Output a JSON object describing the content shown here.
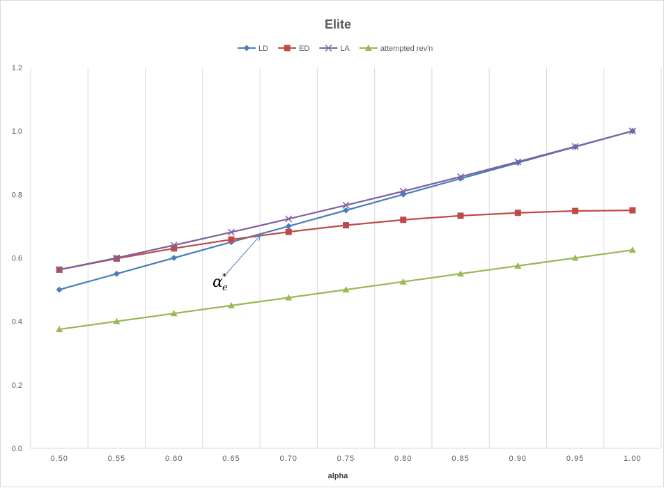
{
  "chart_data": {
    "type": "line",
    "title": "Elite",
    "xlabel": "alpha",
    "ylabel": "",
    "x": [
      0.5,
      0.55,
      0.6,
      0.65,
      0.7,
      0.75,
      0.8,
      0.85,
      0.9,
      0.95,
      1.0
    ],
    "x_tick_labels": [
      "0.50",
      "0.55",
      "0.60",
      "0.65",
      "0.70",
      "0.75",
      "0.80",
      "0.85",
      "0.90",
      "0.95",
      "1.00"
    ],
    "y_tick_labels": [
      "0.0",
      "0.2",
      "0.4",
      "0.6",
      "0.8",
      "1.0",
      "1.2"
    ],
    "ylim": [
      0,
      1.2
    ],
    "grid": "vertical",
    "legend_position": "top",
    "series": [
      {
        "name": "LD",
        "color": "#4a7ebb",
        "marker": "diamond",
        "values": [
          0.5,
          0.55,
          0.6,
          0.65,
          0.7,
          0.75,
          0.8,
          0.85,
          0.9,
          0.95,
          1.0
        ]
      },
      {
        "name": "ED",
        "color": "#be4b48",
        "marker": "square",
        "values": [
          0.563,
          0.598,
          0.63,
          0.658,
          0.682,
          0.703,
          0.72,
          0.733,
          0.742,
          0.748,
          0.75
        ]
      },
      {
        "name": "LA",
        "color": "#7e62a1",
        "marker": "x",
        "values": [
          0.563,
          0.6,
          0.64,
          0.681,
          0.723,
          0.766,
          0.81,
          0.856,
          0.903,
          0.951,
          1.0
        ]
      },
      {
        "name": "attempted rev'n",
        "color": "#98b954",
        "marker": "triangle",
        "values": [
          0.375,
          0.4,
          0.425,
          0.45,
          0.475,
          0.5,
          0.525,
          0.55,
          0.575,
          0.6,
          0.625
        ]
      }
    ],
    "annotation": {
      "label": "α",
      "subscript": "e",
      "superscript": "*",
      "arrow_target": {
        "x": 0.675,
        "y": 0.67
      }
    }
  }
}
